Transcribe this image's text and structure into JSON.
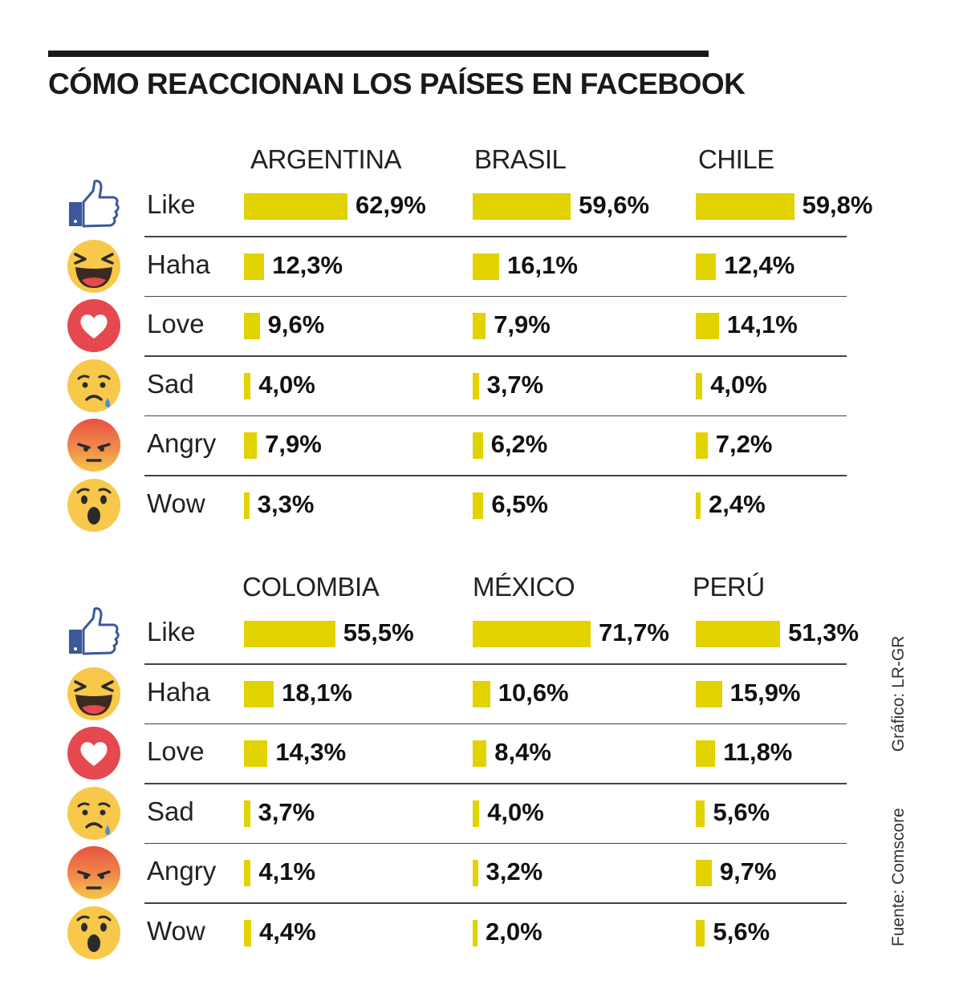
{
  "title": "CÓMO REACCIONAN LOS PAÍSES EN FACEBOOK",
  "credit": "Gráfico: LR-GR",
  "source": "Fuente: Comscore",
  "colors": {
    "bar": "#e2d200",
    "text": "#1a1a1a",
    "rule": "#1a1a1a"
  },
  "reactions": [
    {
      "label": "Like",
      "icon": "like-thumb-icon"
    },
    {
      "label": "Haha",
      "icon": "haha-face-icon"
    },
    {
      "label": "Love",
      "icon": "love-heart-icon"
    },
    {
      "label": "Sad",
      "icon": "sad-face-icon"
    },
    {
      "label": "Angry",
      "icon": "angry-face-icon"
    },
    {
      "label": "Wow",
      "icon": "wow-face-icon"
    }
  ],
  "chart_data": {
    "type": "bar",
    "title": "CÓMO REACCIONAN LOS PAÍSES EN FACEBOOK",
    "unit": "%",
    "categories": [
      "Like",
      "Haha",
      "Love",
      "Sad",
      "Angry",
      "Wow"
    ],
    "series": [
      {
        "name": "ARGENTINA",
        "values": [
          62.9,
          12.3,
          9.6,
          4.0,
          7.9,
          3.3
        ],
        "labels": [
          "62,9%",
          "12,3%",
          "9,6%",
          "4,0%",
          "7,9%",
          "3,3%"
        ]
      },
      {
        "name": "BRASIL",
        "values": [
          59.6,
          16.1,
          7.9,
          3.7,
          6.2,
          6.5
        ],
        "labels": [
          "59,6%",
          "16,1%",
          "7,9%",
          "3,7%",
          "6,2%",
          "6,5%"
        ]
      },
      {
        "name": "CHILE",
        "values": [
          59.8,
          12.4,
          14.1,
          4.0,
          7.2,
          2.4
        ],
        "labels": [
          "59,8%",
          "12,4%",
          "14,1%",
          "4,0%",
          "7,2%",
          "2,4%"
        ]
      },
      {
        "name": "COLOMBIA",
        "values": [
          55.5,
          18.1,
          14.3,
          3.7,
          4.1,
          4.4
        ],
        "labels": [
          "55,5%",
          "18,1%",
          "14,3%",
          "3,7%",
          "4,1%",
          "4,4%"
        ]
      },
      {
        "name": "MÉXICO",
        "values": [
          71.7,
          10.6,
          8.4,
          4.0,
          3.2,
          2.0
        ],
        "labels": [
          "71,7%",
          "10,6%",
          "8,4%",
          "4,0%",
          "3,2%",
          "2,0%"
        ]
      },
      {
        "name": "PERÚ",
        "values": [
          51.3,
          15.9,
          11.8,
          5.6,
          9.7,
          5.6
        ],
        "labels": [
          "51,3%",
          "15,9%",
          "11,8%",
          "5,6%",
          "9,7%",
          "5,6%"
        ]
      }
    ]
  }
}
